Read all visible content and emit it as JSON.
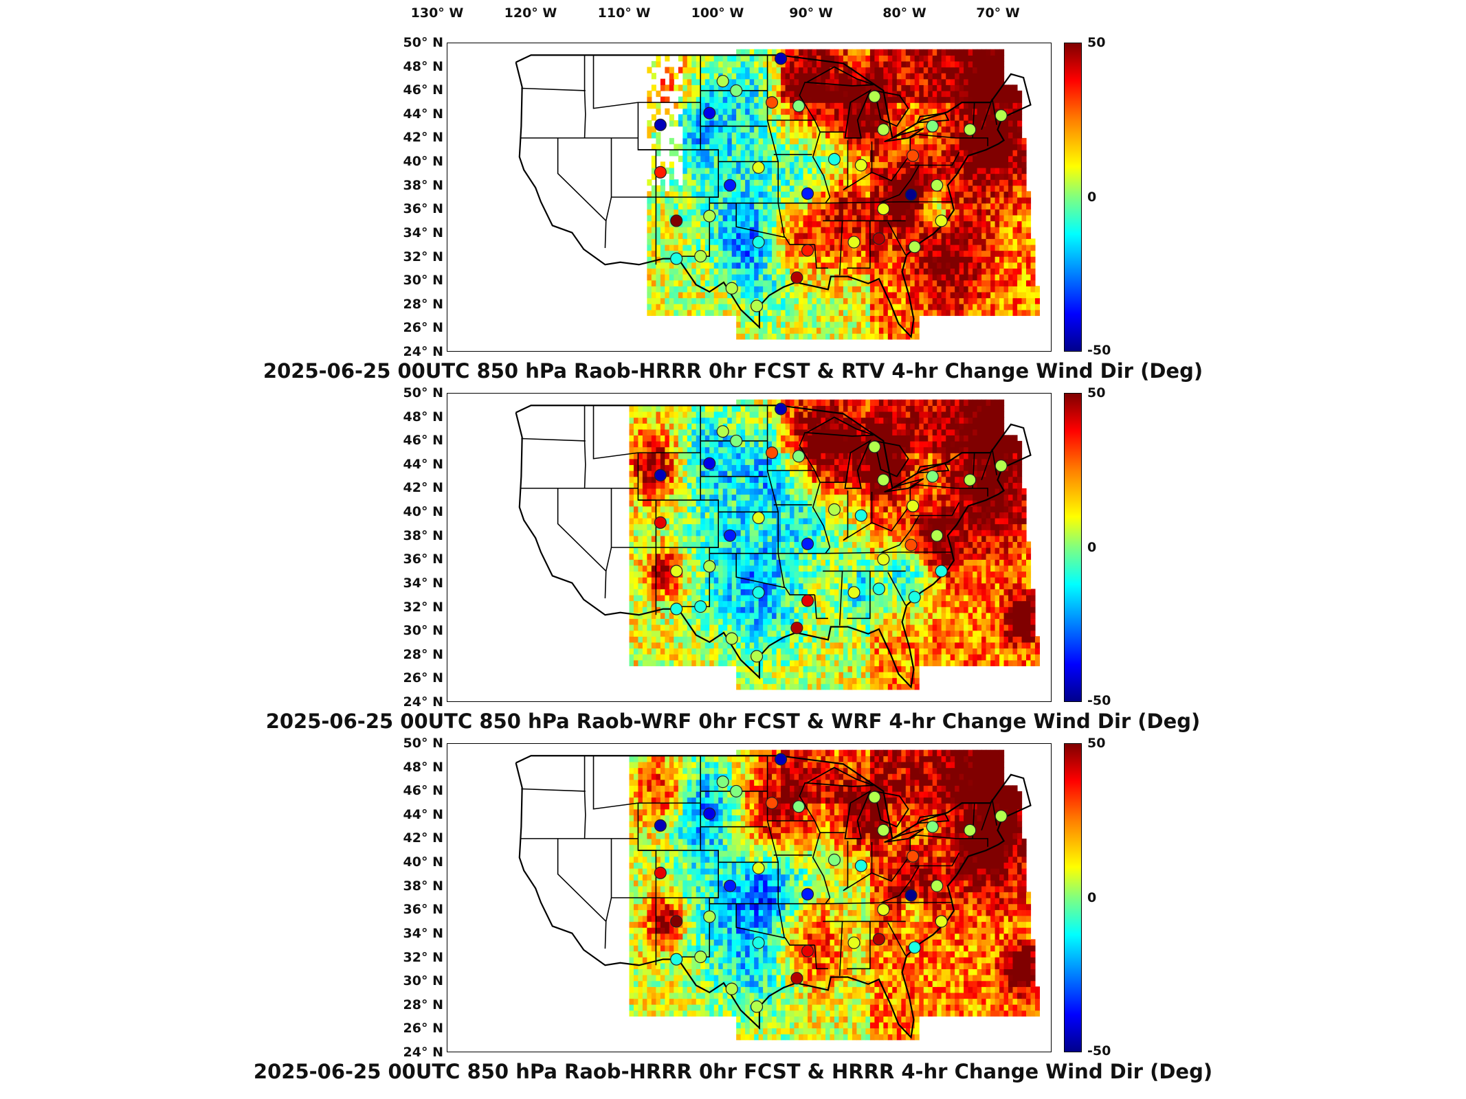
{
  "longitude_labels": [
    "130° W",
    "120° W",
    "110° W",
    "100° W",
    "90° W",
    "80° W",
    "70° W"
  ],
  "latitude_labels": [
    "50° N",
    "48° N",
    "46° N",
    "44° N",
    "42° N",
    "40° N",
    "38° N",
    "36° N",
    "34° N",
    "32° N",
    "30° N",
    "28° N",
    "26° N",
    "24° N"
  ],
  "colorbar": {
    "max": "50",
    "mid": "0",
    "min": "-50",
    "colors": [
      "#800000",
      "#ff0000",
      "#ff8000",
      "#ffff00",
      "#80ff80",
      "#00ffff",
      "#0080ff",
      "#0000ff",
      "#00008b"
    ]
  },
  "panels": [
    {
      "caption": "2025-06-25 00UTC 850 hPa Raob-HRRR 0hr FCST & RTV 4-hr Change Wind Dir (Deg)"
    },
    {
      "caption": "2025-06-25 00UTC 850 hPa Raob-WRF 0hr FCST & WRF 4-hr Change Wind Dir (Deg)"
    },
    {
      "caption": "2025-06-25 00UTC 850 hPa Raob-HRRR 0hr FCST & HRRR 4-hr Change Wind Dir (Deg)"
    }
  ],
  "stations": [
    {
      "lon": -95.0,
      "lat": 48.7,
      "v": [
        -45,
        -45,
        -45
      ]
    },
    {
      "lon": -101.5,
      "lat": 46.8,
      "v": [
        5,
        5,
        0
      ]
    },
    {
      "lon": -100.0,
      "lat": 46.0,
      "v": [
        0,
        0,
        0
      ]
    },
    {
      "lon": -96.0,
      "lat": 45.0,
      "v": [
        30,
        30,
        30
      ]
    },
    {
      "lon": -108.5,
      "lat": 43.1,
      "v": [
        -45,
        -45,
        -45
      ]
    },
    {
      "lon": -103.0,
      "lat": 44.1,
      "v": [
        -40,
        -40,
        -40
      ]
    },
    {
      "lon": -93.0,
      "lat": 44.7,
      "v": [
        0,
        0,
        0
      ]
    },
    {
      "lon": -84.5,
      "lat": 45.5,
      "v": [
        5,
        5,
        5
      ]
    },
    {
      "lon": -83.5,
      "lat": 42.7,
      "v": [
        5,
        5,
        5
      ]
    },
    {
      "lon": -78.0,
      "lat": 43.0,
      "v": [
        0,
        0,
        0
      ]
    },
    {
      "lon": -73.8,
      "lat": 42.7,
      "v": [
        5,
        5,
        5
      ]
    },
    {
      "lon": -70.3,
      "lat": 43.9,
      "v": [
        5,
        5,
        5
      ]
    },
    {
      "lon": -108.5,
      "lat": 39.1,
      "v": [
        35,
        40,
        40
      ]
    },
    {
      "lon": -100.7,
      "lat": 38.0,
      "v": [
        -35,
        -35,
        -35
      ]
    },
    {
      "lon": -97.5,
      "lat": 39.5,
      "v": [
        10,
        10,
        10
      ]
    },
    {
      "lon": -92.0,
      "lat": 37.3,
      "v": [
        -35,
        -35,
        -35
      ]
    },
    {
      "lon": -89.0,
      "lat": 40.2,
      "v": [
        -10,
        5,
        0
      ]
    },
    {
      "lon": -86.0,
      "lat": 39.7,
      "v": [
        10,
        -10,
        -10
      ]
    },
    {
      "lon": -80.2,
      "lat": 40.5,
      "v": [
        30,
        10,
        30
      ]
    },
    {
      "lon": -77.5,
      "lat": 38.0,
      "v": [
        5,
        5,
        5
      ]
    },
    {
      "lon": -106.7,
      "lat": 35.0,
      "v": [
        50,
        10,
        50
      ]
    },
    {
      "lon": -103.0,
      "lat": 35.4,
      "v": [
        5,
        5,
        5
      ]
    },
    {
      "lon": -97.5,
      "lat": 33.2,
      "v": [
        -10,
        -10,
        -10
      ]
    },
    {
      "lon": -92.0,
      "lat": 32.5,
      "v": [
        35,
        40,
        40
      ]
    },
    {
      "lon": -86.8,
      "lat": 33.2,
      "v": [
        10,
        10,
        10
      ]
    },
    {
      "lon": -84.0,
      "lat": 33.5,
      "v": [
        45,
        -10,
        45
      ]
    },
    {
      "lon": -80.0,
      "lat": 32.8,
      "v": [
        5,
        -10,
        -10
      ]
    },
    {
      "lon": -104.0,
      "lat": 32.0,
      "v": [
        5,
        -10,
        5
      ]
    },
    {
      "lon": -106.7,
      "lat": 31.8,
      "v": [
        -10,
        -10,
        -10
      ]
    },
    {
      "lon": -100.5,
      "lat": 29.3,
      "v": [
        5,
        5,
        5
      ]
    },
    {
      "lon": -97.7,
      "lat": 27.8,
      "v": [
        5,
        5,
        5
      ]
    },
    {
      "lon": -93.2,
      "lat": 30.2,
      "v": [
        45,
        45,
        45
      ]
    },
    {
      "lon": -83.5,
      "lat": 36.0,
      "v": [
        10,
        10,
        10
      ]
    },
    {
      "lon": -80.4,
      "lat": 37.2,
      "v": [
        -50,
        30,
        -50
      ]
    },
    {
      "lon": -77.0,
      "lat": 35.0,
      "v": [
        10,
        -10,
        10
      ]
    }
  ]
}
